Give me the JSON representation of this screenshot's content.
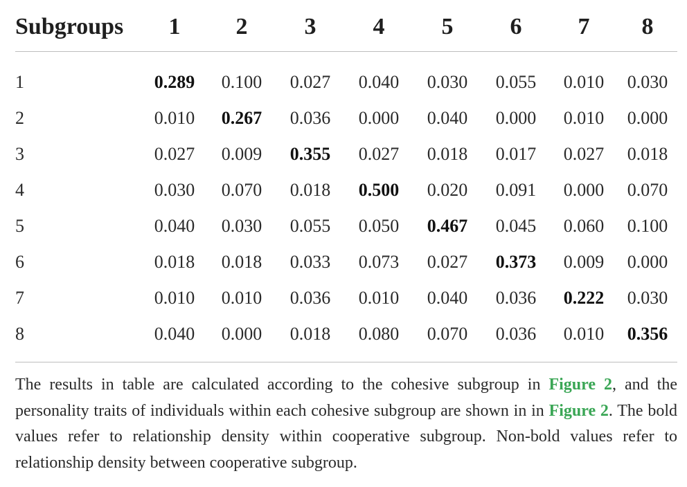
{
  "table": {
    "header": [
      "Subgroups",
      "1",
      "2",
      "3",
      "4",
      "5",
      "6",
      "7",
      "8"
    ],
    "rows": [
      {
        "label": "1",
        "values": [
          "0.289",
          "0.100",
          "0.027",
          "0.040",
          "0.030",
          "0.055",
          "0.010",
          "0.030"
        ]
      },
      {
        "label": "2",
        "values": [
          "0.010",
          "0.267",
          "0.036",
          "0.000",
          "0.040",
          "0.000",
          "0.010",
          "0.000"
        ]
      },
      {
        "label": "3",
        "values": [
          "0.027",
          "0.009",
          "0.355",
          "0.027",
          "0.018",
          "0.017",
          "0.027",
          "0.018"
        ]
      },
      {
        "label": "4",
        "values": [
          "0.030",
          "0.070",
          "0.018",
          "0.500",
          "0.020",
          "0.091",
          "0.000",
          "0.070"
        ]
      },
      {
        "label": "5",
        "values": [
          "0.040",
          "0.030",
          "0.055",
          "0.050",
          "0.467",
          "0.045",
          "0.060",
          "0.100"
        ]
      },
      {
        "label": "6",
        "values": [
          "0.018",
          "0.018",
          "0.033",
          "0.073",
          "0.027",
          "0.373",
          "0.009",
          "0.000"
        ]
      },
      {
        "label": "7",
        "values": [
          "0.010",
          "0.010",
          "0.036",
          "0.010",
          "0.040",
          "0.036",
          "0.222",
          "0.030"
        ]
      },
      {
        "label": "8",
        "values": [
          "0.040",
          "0.000",
          "0.018",
          "0.080",
          "0.070",
          "0.036",
          "0.010",
          "0.356"
        ]
      }
    ]
  },
  "footnote": {
    "part1": "The results in table are calculated according to the cohesive subgroup in ",
    "link1": "Figure 2",
    "part2": ", and the personality traits of individuals within each cohesive subgroup are shown in in ",
    "link2": "Figure 2",
    "part3": ". The bold values refer to relationship density within cooperative subgroup. Non-bold values refer to relationship density between cooperative subgroup."
  },
  "colors": {
    "link": "#3aa655",
    "rule": "#bdbdbd",
    "text": "#2a2a2a"
  }
}
